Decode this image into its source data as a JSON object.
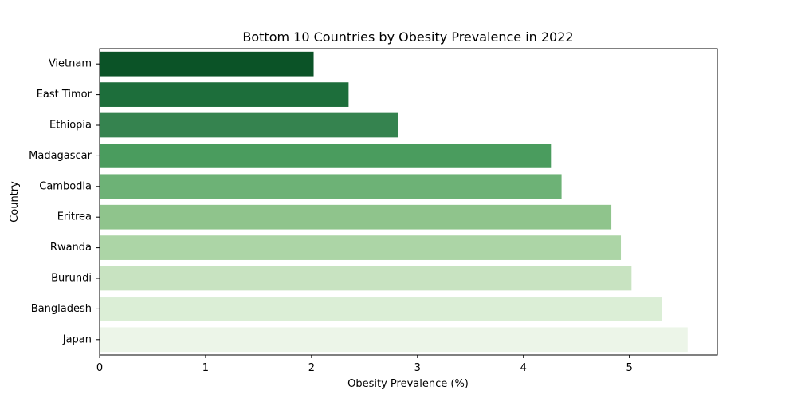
{
  "chart_data": {
    "type": "bar",
    "orientation": "horizontal",
    "title": "Bottom 10 Countries by Obesity Prevalence in 2022",
    "xlabel": "Obesity Prevalence (%)",
    "ylabel": "Country",
    "categories": [
      "Vietnam",
      "East Timor",
      "Ethiopia",
      "Madagascar",
      "Cambodia",
      "Eritrea",
      "Rwanda",
      "Burundi",
      "Bangladesh",
      "Japan"
    ],
    "values": [
      2.02,
      2.35,
      2.82,
      4.26,
      4.36,
      4.83,
      4.92,
      5.02,
      5.31,
      5.55
    ],
    "colors": [
      "#0b5327",
      "#1d6e3b",
      "#35834f",
      "#4a9c5e",
      "#6db276",
      "#8fc48c",
      "#acd5a6",
      "#c8e3c1",
      "#dbeed6",
      "#ecf5e8"
    ],
    "xlim": [
      0,
      5.83
    ],
    "xticks": [
      0,
      1,
      2,
      3,
      4,
      5
    ],
    "grid": false,
    "legend": "none"
  }
}
